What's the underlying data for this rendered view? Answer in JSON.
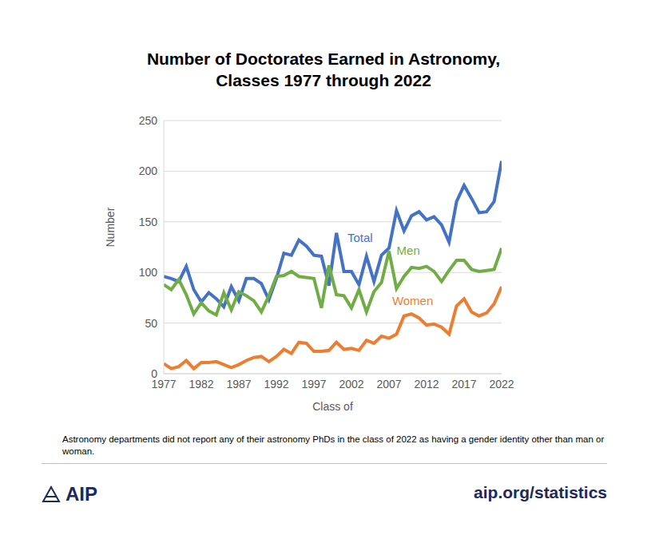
{
  "chart_data": {
    "type": "line",
    "title": "Number of Doctorates Earned in Astronomy,",
    "subtitle": "Classes 1977 through 2022",
    "x_label": "Class of",
    "y_label": "Number",
    "annotations": [
      "Astronomy departments did not report any of their astronomy PhDs in the class of 2022 as having a gender identity other than man or woman.",
      "AIP",
      "aip.org/statistics"
    ],
    "x": [
      1977,
      1978,
      1979,
      1980,
      1981,
      1982,
      1983,
      1984,
      1985,
      1986,
      1987,
      1988,
      1989,
      1990,
      1991,
      1992,
      1993,
      1994,
      1995,
      1996,
      1997,
      1998,
      1999,
      2000,
      2001,
      2002,
      2003,
      2004,
      2005,
      2006,
      2007,
      2008,
      2009,
      2010,
      2011,
      2012,
      2013,
      2014,
      2015,
      2016,
      2017,
      2018,
      2019,
      2020,
      2021,
      2022
    ],
    "series": [
      {
        "name": "Total",
        "color": "#4472c4",
        "values": [
          96,
          94,
          91,
          106,
          83,
          71,
          80,
          74,
          66,
          86,
          72,
          94,
          94,
          89,
          73,
          94,
          119,
          117,
          132,
          126,
          117,
          116,
          87,
          139,
          101,
          101,
          88,
          116,
          91,
          117,
          124,
          161,
          141,
          156,
          160,
          152,
          155,
          147,
          130,
          170,
          186,
          173,
          159,
          160,
          170,
          210
        ]
      },
      {
        "name": "Men",
        "color": "#70ad47",
        "values": [
          88,
          83,
          93,
          78,
          59,
          70,
          62,
          58,
          80,
          63,
          81,
          77,
          72,
          61,
          77,
          96,
          97,
          101,
          96,
          95,
          94,
          65,
          107,
          78,
          77,
          65,
          83,
          61,
          81,
          90,
          121,
          84,
          96,
          105,
          104,
          106,
          101,
          91,
          102,
          112,
          112,
          103,
          101,
          102,
          103,
          124
        ]
      },
      {
        "name": "Women",
        "color": "#ed7d31",
        "values": [
          10,
          5,
          7,
          13,
          5,
          11,
          11,
          12,
          9,
          6,
          9,
          13,
          16,
          17,
          12,
          17,
          24,
          20,
          31,
          30,
          22,
          22,
          23,
          31,
          24,
          25,
          23,
          33,
          30,
          37,
          35,
          39,
          57,
          59,
          55,
          48,
          49,
          46,
          39,
          67,
          74,
          61,
          57,
          60,
          69,
          86
        ]
      }
    ],
    "xlim": [
      1977,
      2022
    ],
    "xticks": [
      1977,
      1982,
      1987,
      1992,
      1997,
      2002,
      2007,
      2012,
      2017,
      2022
    ],
    "ylim": [
      0,
      250
    ],
    "yticks": [
      0,
      50,
      100,
      150,
      200,
      250
    ],
    "grid": true
  }
}
